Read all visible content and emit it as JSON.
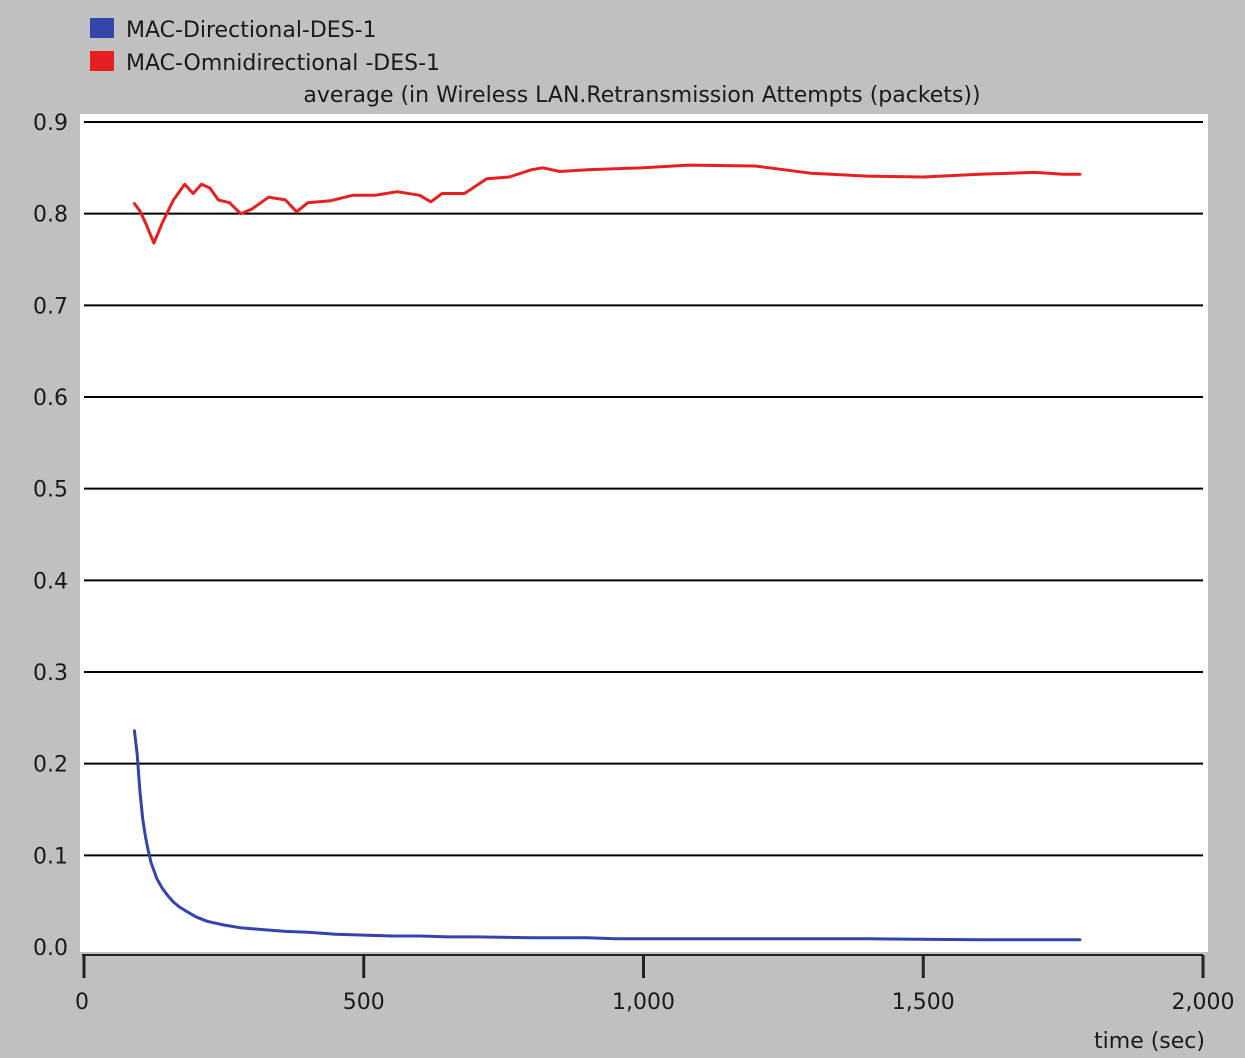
{
  "chart_data": {
    "type": "line",
    "title": "average (in Wireless LAN.Retransmission Attempts (packets))",
    "xlabel": "time (sec)",
    "ylabel": "",
    "xlim": [
      0,
      2000
    ],
    "ylim": [
      0.0,
      0.9
    ],
    "x_ticks": [
      0,
      500,
      1000,
      1500,
      2000
    ],
    "x_tick_labels": [
      "0",
      "500",
      "1,000",
      "1,500",
      "2,000"
    ],
    "y_ticks": [
      0.0,
      0.1,
      0.2,
      0.3,
      0.4,
      0.5,
      0.6,
      0.7,
      0.8,
      0.9
    ],
    "y_tick_labels": [
      "0.0",
      "0.1",
      "0.2",
      "0.3",
      "0.4",
      "0.5",
      "0.6",
      "0.7",
      "0.8",
      "0.9"
    ],
    "grid": "horizontal",
    "legend_position": "top-left",
    "series": [
      {
        "name": "MAC-Directional-DES-1",
        "color": "#3344aa",
        "x": [
          90,
          95,
          100,
          105,
          110,
          115,
          120,
          130,
          140,
          150,
          160,
          170,
          180,
          200,
          220,
          250,
          280,
          320,
          360,
          400,
          450,
          500,
          550,
          600,
          650,
          700,
          800,
          900,
          950,
          1000,
          1200,
          1400,
          1600,
          1780
        ],
        "y": [
          0.236,
          0.21,
          0.17,
          0.14,
          0.12,
          0.105,
          0.092,
          0.075,
          0.064,
          0.056,
          0.049,
          0.044,
          0.04,
          0.033,
          0.028,
          0.024,
          0.021,
          0.019,
          0.017,
          0.016,
          0.014,
          0.013,
          0.012,
          0.012,
          0.011,
          0.011,
          0.01,
          0.01,
          0.009,
          0.009,
          0.009,
          0.009,
          0.008,
          0.008
        ]
      },
      {
        "name": "MAC-Omnidirectional -DES-1",
        "color": "#e62020",
        "x": [
          90,
          100,
          110,
          125,
          140,
          160,
          180,
          195,
          210,
          225,
          240,
          260,
          280,
          300,
          330,
          360,
          380,
          400,
          440,
          480,
          520,
          560,
          600,
          620,
          640,
          680,
          720,
          760,
          800,
          820,
          850,
          900,
          1000,
          1080,
          1200,
          1300,
          1400,
          1500,
          1600,
          1700,
          1750,
          1780
        ],
        "y": [
          0.811,
          0.803,
          0.79,
          0.768,
          0.79,
          0.815,
          0.832,
          0.822,
          0.832,
          0.828,
          0.815,
          0.812,
          0.8,
          0.805,
          0.818,
          0.815,
          0.802,
          0.812,
          0.814,
          0.82,
          0.82,
          0.824,
          0.82,
          0.813,
          0.822,
          0.822,
          0.838,
          0.84,
          0.848,
          0.85,
          0.846,
          0.848,
          0.85,
          0.853,
          0.852,
          0.844,
          0.841,
          0.84,
          0.843,
          0.845,
          0.843,
          0.843
        ]
      }
    ]
  }
}
